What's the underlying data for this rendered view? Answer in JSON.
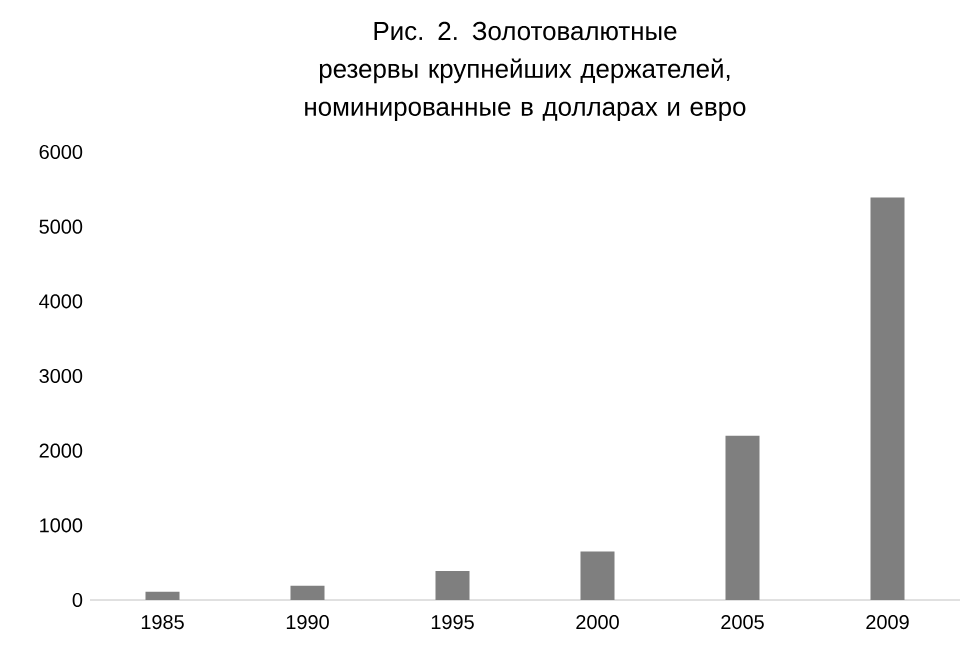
{
  "chart_data": {
    "type": "bar",
    "title": "Рис. 2. Золотовалютные резервы крупнейших держателей, номинированные в долларах и евро",
    "categories": [
      "1985",
      "1990",
      "1995",
      "2000",
      "2005",
      "2009"
    ],
    "values": [
      110,
      190,
      390,
      650,
      2200,
      5390
    ],
    "color": "#7f7f7f",
    "ylim": [
      0,
      6000
    ],
    "yticks": [
      0,
      1000,
      2000,
      3000,
      4000,
      5000,
      6000
    ]
  }
}
